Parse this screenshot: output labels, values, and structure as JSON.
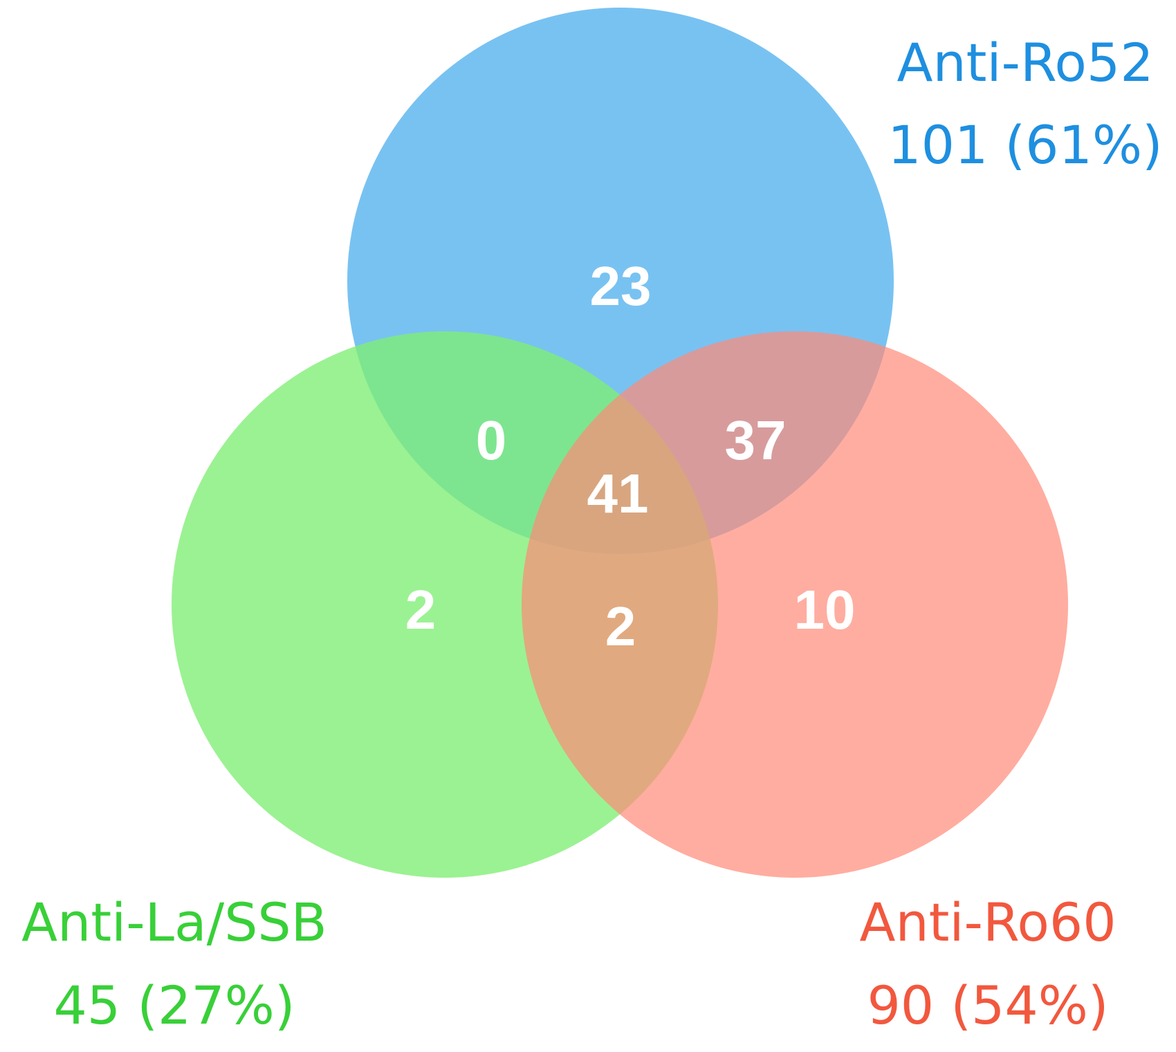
{
  "sets": [
    {
      "id": "ro52",
      "name": "Anti-Ro52",
      "total": "101 (61%)",
      "fill": "#5AB4EF",
      "label_color": "#1E8FE0"
    },
    {
      "id": "la",
      "name": "Anti-La/SSB",
      "total": "45 (27%)",
      "fill": "#7FEE73",
      "label_color": "#38D038"
    },
    {
      "id": "ro60",
      "name": "Anti-Ro60",
      "total": "90 (54%)",
      "fill": "#FF8A78",
      "label_color": "#F2583E"
    }
  ],
  "regions": {
    "ro52_only": "23",
    "ro52_la": "0",
    "ro52_ro60": "37",
    "all_three": "41",
    "la_only": "2",
    "la_ro60": "2",
    "ro60_only": "10"
  }
}
